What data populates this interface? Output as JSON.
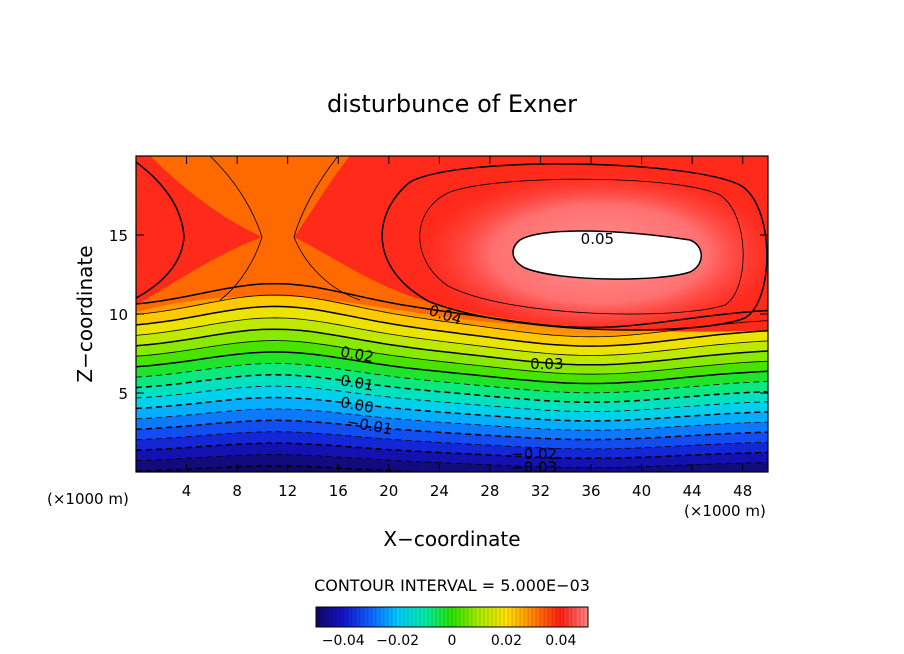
{
  "chart_data": {
    "type": "contour",
    "title": "disturbunce of Exner",
    "xlabel": "X−coordinate",
    "ylabel": "Z−coordinate",
    "x_unit": "(×1000 m)",
    "x_range": [
      0,
      50
    ],
    "y_range": [
      0,
      20
    ],
    "x_ticks": [
      4,
      8,
      12,
      16,
      20,
      24,
      28,
      32,
      36,
      40,
      44,
      48
    ],
    "y_ticks": [
      5,
      10,
      15
    ],
    "contour_interval_text": "CONTOUR INTERVAL = 5.000E−03",
    "contour_interval": 0.005,
    "value_range": [
      -0.05,
      0.05
    ],
    "contour_labels": [
      {
        "text": "0.05",
        "value": 0.05
      },
      {
        "text": "0.04",
        "value": 0.04
      },
      {
        "text": "0.03",
        "value": 0.03
      },
      {
        "text": "0.02",
        "value": 0.02
      },
      {
        "text": "0.01",
        "value": 0.01
      },
      {
        "text": "0.00",
        "value": 0.0
      },
      {
        "text": "−0.01",
        "value": -0.01
      },
      {
        "text": "−0.02",
        "value": -0.02
      },
      {
        "text": "−0.03",
        "value": -0.03
      }
    ],
    "colorbar": {
      "ticks": [
        -0.04,
        -0.02,
        0,
        0.02,
        0.04
      ],
      "tick_labels": [
        "−0.04",
        "−0.02",
        "0",
        "0.02",
        "0.04"
      ]
    },
    "colors": {
      "white_max": "#ffffff",
      "red_light": "#ff7070",
      "red": "#ff1c1c",
      "orange": "#ff7f00",
      "yellow": "#ffe000",
      "green": "#20e000",
      "cyan": "#00e0ff",
      "blue": "#1060ff",
      "dark_blue": "#1010a0"
    }
  }
}
